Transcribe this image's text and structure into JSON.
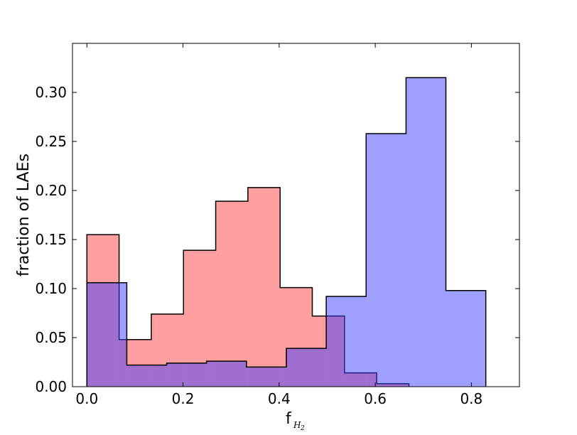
{
  "chart_data": {
    "type": "bar",
    "subtype": "overlapping step histograms",
    "xlabel": "f",
    "xlabel_subscript": "H",
    "xlabel_subsubscript": "2",
    "ylabel": "fraction of LAEs",
    "xlim": [
      -0.03,
      0.9
    ],
    "ylim": [
      0.0,
      0.35
    ],
    "xticks": [
      "0.0",
      "0.2",
      "0.4",
      "0.6",
      "0.8"
    ],
    "xtick_values": [
      0.0,
      0.2,
      0.4,
      0.6,
      0.8
    ],
    "yticks": [
      "0.00",
      "0.05",
      "0.10",
      "0.15",
      "0.20",
      "0.25",
      "0.30"
    ],
    "ytick_values": [
      0.0,
      0.05,
      0.1,
      0.15,
      0.2,
      0.25,
      0.3
    ],
    "grid": false,
    "series": [
      {
        "color": "#ff4040",
        "alpha": 0.5,
        "bin_edges": [
          0.0,
          0.067,
          0.134,
          0.201,
          0.268,
          0.335,
          0.402,
          0.469,
          0.536,
          0.603,
          0.67
        ],
        "values": [
          0.155,
          0.048,
          0.074,
          0.139,
          0.189,
          0.203,
          0.101,
          0.072,
          0.014,
          0.003
        ]
      },
      {
        "color": "#4040ff",
        "alpha": 0.5,
        "bin_edges": [
          0.0,
          0.083,
          0.166,
          0.249,
          0.332,
          0.415,
          0.498,
          0.581,
          0.664,
          0.747,
          0.83
        ],
        "values": [
          0.106,
          0.022,
          0.024,
          0.026,
          0.02,
          0.039,
          0.092,
          0.258,
          0.315,
          0.098
        ]
      }
    ]
  }
}
